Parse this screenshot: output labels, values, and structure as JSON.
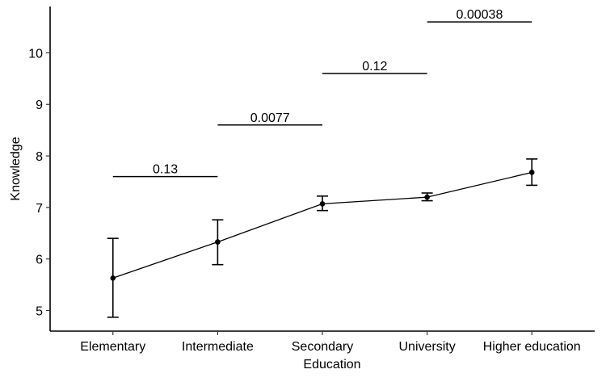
{
  "chart_data": {
    "type": "line",
    "xlabel": "Education",
    "ylabel": "Knowledge",
    "categories": [
      "Elementary",
      "Intermediate",
      "Secondary",
      "University",
      "Higher education"
    ],
    "series": [
      {
        "values": [
          5.63,
          6.33,
          7.07,
          7.2,
          7.68
        ],
        "error_low": [
          4.87,
          5.89,
          6.94,
          7.13,
          7.43
        ],
        "error_high": [
          6.4,
          6.76,
          7.22,
          7.28,
          7.94
        ]
      }
    ],
    "ylim": [
      4.6,
      10.9
    ],
    "yticks": [
      5,
      6,
      7,
      8,
      9,
      10
    ],
    "grid": false,
    "comparisons": [
      {
        "from": 0,
        "to": 1,
        "y": 7.6,
        "label": "0.13"
      },
      {
        "from": 1,
        "to": 2,
        "y": 8.6,
        "label": "0.0077"
      },
      {
        "from": 2,
        "to": 3,
        "y": 9.6,
        "label": "0.12"
      },
      {
        "from": 3,
        "to": 4,
        "y": 10.6,
        "label": "0.00038"
      }
    ],
    "colors": {
      "line": "#000000",
      "point": "#000000"
    }
  }
}
